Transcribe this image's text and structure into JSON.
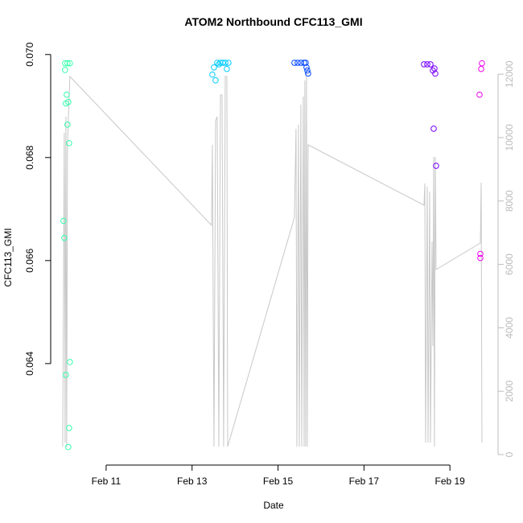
{
  "chart_data": {
    "type": "scatter",
    "title": "ATOM2 Northbound CFC113_GMI",
    "xlabel": "Date",
    "ylabel": "CFC113_GMI",
    "xlim": [
      9.71,
      20.12
    ],
    "ylim": [
      0.06203,
      0.07009
    ],
    "y2lim": [
      -330,
      12766
    ],
    "xticks": [
      {
        "value": 11,
        "label": "Feb 11"
      },
      {
        "value": 13,
        "label": "Feb 13"
      },
      {
        "value": 15,
        "label": "Feb 15"
      },
      {
        "value": 17,
        "label": "Feb 17"
      },
      {
        "value": 19,
        "label": "Feb 19"
      }
    ],
    "yticks": [
      0.064,
      0.066,
      0.068,
      {
        "value": 0.07,
        "label": "0.070"
      }
    ],
    "y2ticks": [
      0,
      2000,
      4000,
      6000,
      8000,
      10000,
      12000
    ],
    "y2color": "#bbbbbb",
    "series": [
      {
        "type": "line",
        "axis": "y2",
        "color": "#c8c8c8",
        "x": [
          9.989,
          10.026,
          10.045,
          10.064,
          10.082,
          10.101,
          10.12,
          10.157,
          13.453,
          13.472,
          13.51,
          13.547,
          13.584,
          13.622,
          13.659,
          13.697,
          13.734,
          13.772,
          13.809,
          13.828,
          15.382,
          15.419,
          15.438,
          15.476,
          15.494,
          15.532,
          15.551,
          15.588,
          15.607,
          15.625,
          15.644,
          15.663,
          15.682,
          15.7,
          18.397,
          18.416,
          18.434,
          18.472,
          18.491,
          18.528,
          18.547,
          18.584,
          18.603,
          18.622,
          18.64,
          18.659,
          18.678,
          19.708,
          19.727,
          19.745
        ],
        "values": [
          254,
          10152,
          381,
          10660,
          254,
          9771,
          10533,
          11929,
          7233,
          9771,
          254,
          10533,
          10660,
          254,
          11345,
          11345,
          254,
          11929,
          11929,
          254,
          7487,
          10279,
          254,
          10406,
          254,
          11040,
          254,
          11294,
          254,
          11802,
          254,
          12055,
          254,
          9771,
          7868,
          8553,
          381,
          8452,
          381,
          8299,
          381,
          6726,
          3426,
          9391,
          254,
          9391,
          5837,
          6675,
          8579,
          381
        ]
      },
      {
        "type": "scatter",
        "color": "#33ffaa",
        "x": [
          10.045,
          10.101,
          10.157,
          10.045,
          10.082,
          10.12,
          10.064,
          10.101,
          10.139,
          10.007,
          10.026,
          10.157,
          10.064,
          10.139,
          10.12
        ],
        "values": [
          0.06983,
          0.06983,
          0.06983,
          0.0697,
          0.06922,
          0.06908,
          0.06905,
          0.06864,
          0.06828,
          0.06677,
          0.06644,
          0.06403,
          0.06378,
          0.06275,
          0.06238
        ]
      },
      {
        "type": "scatter",
        "color": "#00ccff",
        "x": [
          13.472,
          13.51,
          13.547,
          13.584,
          13.622,
          13.659,
          13.715,
          13.772,
          13.846,
          13.809
        ],
        "values": [
          0.06961,
          0.06975,
          0.0695,
          0.06984,
          0.06981,
          0.06984,
          0.06984,
          0.06984,
          0.06984,
          0.06972
        ]
      },
      {
        "type": "scatter",
        "color": "#0044ff",
        "x": [
          15.382,
          15.457,
          15.532,
          15.607,
          15.644,
          15.663,
          15.682,
          15.7
        ],
        "values": [
          0.06984,
          0.06984,
          0.06984,
          0.06984,
          0.06984,
          0.06975,
          0.06969,
          0.06963
        ]
      },
      {
        "type": "scatter",
        "color": "#7700ff",
        "x": [
          18.397,
          18.472,
          18.547,
          18.603,
          18.64,
          18.659,
          18.622,
          18.678
        ],
        "values": [
          0.06981,
          0.06981,
          0.06981,
          0.06969,
          0.06973,
          0.06963,
          0.06856,
          0.06784
        ]
      },
      {
        "type": "scatter",
        "color": "#ee00ee",
        "x": [
          19.745,
          19.727,
          19.689,
          19.708,
          19.708
        ],
        "values": [
          0.06983,
          0.06972,
          0.06922,
          0.06613,
          0.06605
        ]
      }
    ]
  }
}
